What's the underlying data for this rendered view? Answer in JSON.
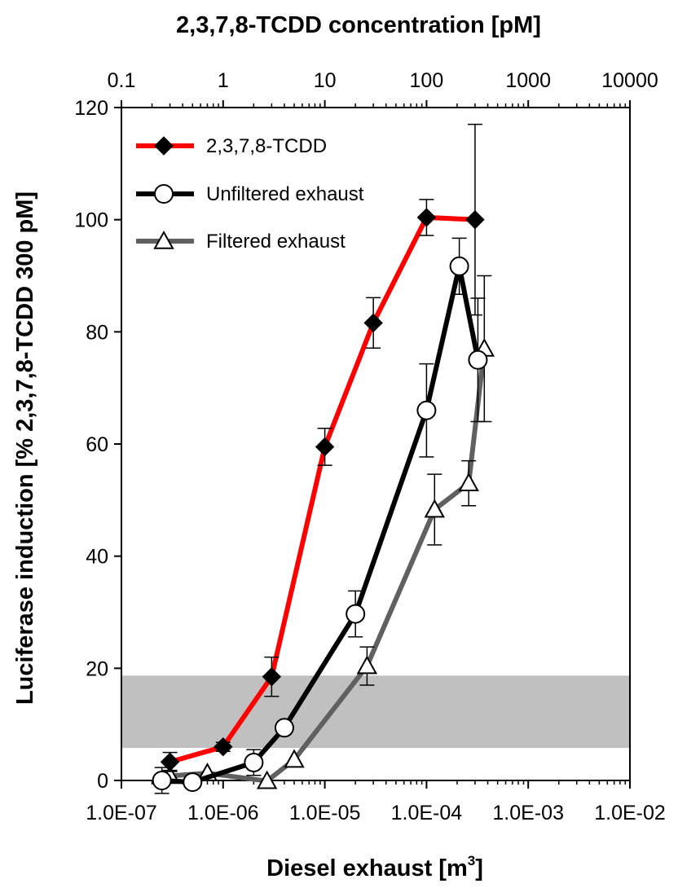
{
  "chart_data": {
    "type": "line",
    "top_axis_title": "2,3,7,8-TCDD concentration [pM]",
    "xlabel": "Diesel exhaust [m",
    "xlabel_sup": "3",
    "xlabel_end": "]",
    "ylabel": "Luciferase induction [% 2,3,7,8-TCDD 300 pM]",
    "x_scale": "log",
    "xlim": [
      1e-07,
      0.01
    ],
    "x_ticks": [
      1e-07,
      1e-06,
      1e-05,
      0.0001,
      0.001,
      0.01
    ],
    "x_tick_labels": [
      "1.0E-07",
      "1.0E-06",
      "1.0E-05",
      "1.0E-04",
      "1.0E-03",
      "1.0E-02"
    ],
    "top_scale": "log",
    "top_lim": [
      0.1,
      10000
    ],
    "top_ticks": [
      0.1,
      1,
      10,
      100,
      1000,
      10000
    ],
    "top_tick_labels": [
      "0.1",
      "1",
      "10",
      "100",
      "1000",
      "10000"
    ],
    "ylim": [
      0,
      120
    ],
    "y_ticks": [
      0,
      20,
      40,
      60,
      80,
      100,
      120
    ],
    "y_tick_labels": [
      "0",
      "20",
      "40",
      "60",
      "80",
      "100",
      "120"
    ],
    "shaded_band": {
      "y_range": [
        5.8,
        18.7
      ],
      "color": "#c0c0c0"
    },
    "legend_position": "top-left",
    "series": [
      {
        "name": "2,3,7,8-TCDD",
        "axis": "top",
        "color": "#ff0000",
        "marker": "diamond",
        "points": [
          {
            "x": 0.3,
            "y": 3.3,
            "err": 1.7
          },
          {
            "x": 1,
            "y": 6.0,
            "err": 0.8
          },
          {
            "x": 3,
            "y": 18.5,
            "err": 3.5
          },
          {
            "x": 10,
            "y": 59.5,
            "err": 3.3
          },
          {
            "x": 30,
            "y": 81.6,
            "err": 4.5
          },
          {
            "x": 100,
            "y": 100.4,
            "err": 3.2
          },
          {
            "x": 300,
            "y": 100.0,
            "err": 17.0
          }
        ]
      },
      {
        "name": "Unfiltered exhaust",
        "axis": "bottom",
        "color": "#000000",
        "marker": "circle",
        "points": [
          {
            "x": 2.5e-07,
            "y": 0.0,
            "err": 2.3
          },
          {
            "x": 5e-07,
            "y": -0.3,
            "err": 0
          },
          {
            "x": 2e-06,
            "y": 3.2,
            "err": 2.3
          },
          {
            "x": 4e-06,
            "y": 9.4,
            "err": 0
          },
          {
            "x": 2e-05,
            "y": 29.7,
            "err": 4.1
          },
          {
            "x": 0.0001,
            "y": 66.0,
            "err": 8.3
          },
          {
            "x": 0.00021,
            "y": 91.7,
            "err": 5.0
          },
          {
            "x": 0.00032,
            "y": 75.0,
            "err": 11.0
          }
        ]
      },
      {
        "name": "Filtered exhaust",
        "axis": "bottom",
        "color": "#606060",
        "marker": "triangle",
        "points": [
          {
            "x": 3e-07,
            "y": 0.8,
            "err": 1.0
          },
          {
            "x": 7e-07,
            "y": 1.3,
            "err": 0
          },
          {
            "x": 2.7e-06,
            "y": -0.1,
            "err": 0
          },
          {
            "x": 5e-06,
            "y": 3.7,
            "err": 0
          },
          {
            "x": 2.6e-05,
            "y": 20.4,
            "err": 3.4
          },
          {
            "x": 0.00012,
            "y": 48.3,
            "err": 6.3
          },
          {
            "x": 0.00026,
            "y": 53.0,
            "err": 4.0
          },
          {
            "x": 0.00037,
            "y": 77.0,
            "err": 13.0
          }
        ]
      }
    ]
  }
}
